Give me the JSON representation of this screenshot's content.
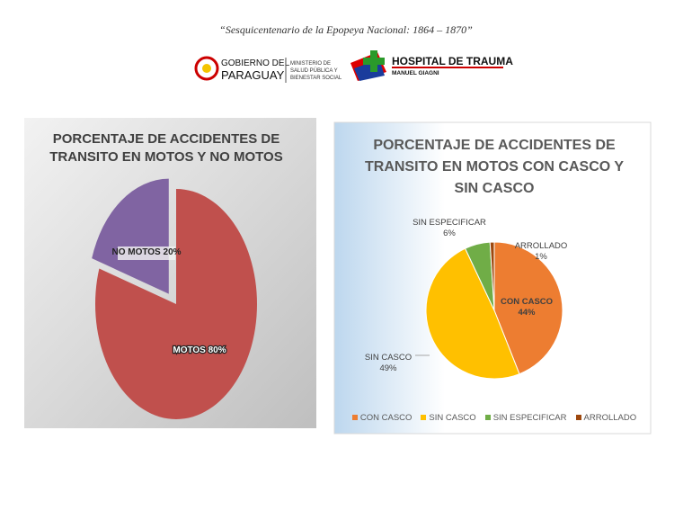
{
  "header": {
    "motto": "“Sesquicentenario de la Epopeya Nacional: 1864 – 1870”",
    "gov_top": "GOBIERNO DEL",
    "gov_bottom": "PARAGUAY",
    "ministry": [
      "MINISTERIO DE",
      "SALUD PÚBLICA Y",
      "BIENESTAR SOCIAL"
    ],
    "hospital": "HOSPITAL DE TRAUMA",
    "hospital_sub": "MANUEL GIAGNI"
  },
  "chart_data": [
    {
      "type": "pie",
      "title": "PORCENTAJE DE ACCIDENTES DE TRANSITO EN MOTOS Y NO MOTOS",
      "categories": [
        "MOTOS",
        "NO MOTOS"
      ],
      "values": [
        80,
        20
      ],
      "value_labels": [
        "80%",
        "20%"
      ],
      "colors": [
        "#c0504d",
        "#8064a2"
      ]
    },
    {
      "type": "pie",
      "title": "PORCENTAJE DE ACCIDENTES DE TRANSITO EN MOTOS CON CASCO Y SIN CASCO",
      "categories": [
        "CON CASCO",
        "SIN CASCO",
        "SIN ESPECIFICAR",
        "ARROLLADO"
      ],
      "values": [
        44,
        49,
        6,
        1
      ],
      "value_labels": [
        "44%",
        "49%",
        "6%",
        "1%"
      ],
      "colors": [
        "#ed7d31",
        "#ffc000",
        "#70ad47",
        "#9e480e"
      ],
      "legend": "bottom"
    }
  ]
}
